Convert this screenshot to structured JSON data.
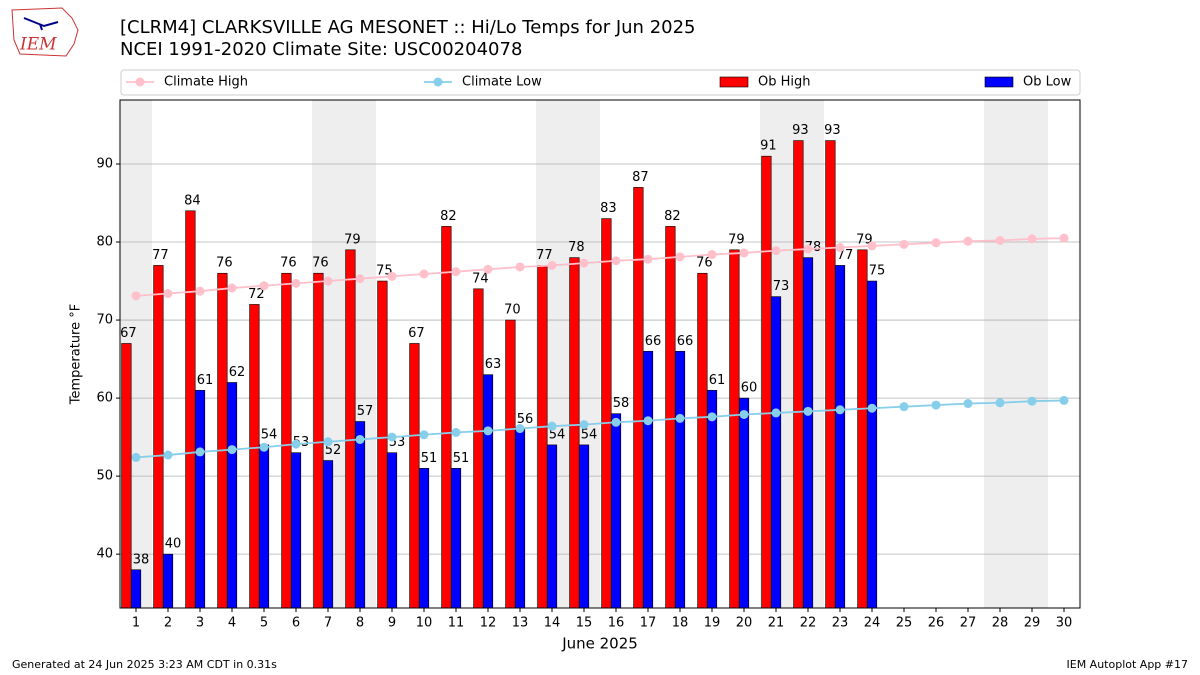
{
  "chart_data": {
    "type": "bar",
    "title": "[CLRM4] CLARKSVILLE AG MESONET :: Hi/Lo Temps for Jun 2025",
    "subtitle": "NCEI 1991-2020 Climate Site: USC00204078",
    "logo_text": "IEM",
    "xlabel": "June 2025",
    "ylabel": "Temperature °F",
    "footer_left": "Generated at 24 Jun 2025 3:23 AM CDT in 0.31s",
    "footer_right": "IEM Autoplot App #17",
    "x": [
      1,
      2,
      3,
      4,
      5,
      6,
      7,
      8,
      9,
      10,
      11,
      12,
      13,
      14,
      15,
      16,
      17,
      18,
      19,
      20,
      21,
      22,
      23,
      24,
      25,
      26,
      27,
      28,
      29,
      30
    ],
    "xticks": [
      1,
      2,
      3,
      4,
      5,
      6,
      7,
      8,
      9,
      10,
      11,
      12,
      13,
      14,
      15,
      16,
      17,
      18,
      19,
      20,
      21,
      22,
      23,
      24,
      25,
      26,
      27,
      28,
      29,
      30
    ],
    "xlim": [
      0.5,
      30.5
    ],
    "ylim": [
      33.1,
      98.2
    ],
    "yticks": [
      40,
      50,
      60,
      70,
      80,
      90
    ],
    "grid": true,
    "shaded_days": [
      1,
      7,
      8,
      14,
      15,
      21,
      22,
      28,
      29
    ],
    "series": [
      {
        "name": "Climate High",
        "type": "line",
        "color": "#ffc0cb",
        "values": [
          73.1,
          73.4,
          73.7,
          74.1,
          74.4,
          74.7,
          75.0,
          75.3,
          75.6,
          75.9,
          76.2,
          76.5,
          76.8,
          77.0,
          77.3,
          77.6,
          77.8,
          78.1,
          78.4,
          78.6,
          78.9,
          79.1,
          79.3,
          79.5,
          79.7,
          79.9,
          80.1,
          80.2,
          80.4,
          80.5
        ]
      },
      {
        "name": "Climate Low",
        "type": "line",
        "color": "#87ceeb",
        "values": [
          52.4,
          52.7,
          53.1,
          53.4,
          53.7,
          54.1,
          54.4,
          54.7,
          55.0,
          55.3,
          55.6,
          55.8,
          56.1,
          56.4,
          56.6,
          56.9,
          57.1,
          57.4,
          57.6,
          57.9,
          58.1,
          58.3,
          58.5,
          58.7,
          58.9,
          59.1,
          59.3,
          59.4,
          59.6,
          59.7
        ]
      },
      {
        "name": "Ob High",
        "type": "bar",
        "color": "#ff0000",
        "values": [
          67,
          77,
          84,
          76,
          72,
          76,
          76,
          79,
          75,
          67,
          82,
          74,
          70,
          77,
          78,
          83,
          87,
          82,
          76,
          79,
          91,
          93,
          93,
          79,
          null,
          null,
          null,
          null,
          null,
          null
        ]
      },
      {
        "name": "Ob Low",
        "type": "bar",
        "color": "#0000ff",
        "values": [
          38,
          40,
          61,
          62,
          54,
          53,
          52,
          57,
          53,
          51,
          51,
          63,
          56,
          54,
          54,
          58,
          66,
          66,
          61,
          60,
          73,
          78,
          77,
          75,
          null,
          null,
          null,
          null,
          null,
          null
        ]
      }
    ]
  }
}
